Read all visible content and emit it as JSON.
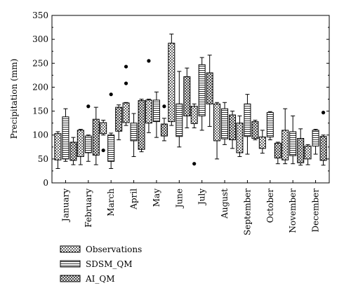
{
  "chart_data": {
    "type": "boxplot",
    "ylabel": "Precipitation (mm)",
    "ylim": [
      0,
      350
    ],
    "yticks": [
      0,
      50,
      100,
      150,
      200,
      250,
      300,
      350
    ],
    "categories": [
      "January",
      "February",
      "March",
      "April",
      "May",
      "June",
      "July",
      "August",
      "September",
      "October",
      "November",
      "December"
    ],
    "legend": {
      "placement": "bottom-left",
      "entries": [
        "Observations",
        "SDSM_QM",
        "AI_QM"
      ]
    },
    "series": [
      {
        "name": "Observations",
        "pattern": "dots",
        "boxes": [
          {
            "min": 30,
            "q1": 48,
            "q3": 103,
            "max": 107,
            "outliers": []
          },
          {
            "min": 38,
            "q1": 55,
            "q3": 110,
            "max": 112,
            "outliers": []
          },
          {
            "min": 100,
            "q1": 103,
            "q3": 126,
            "max": 131,
            "outliers": [
              68
            ]
          },
          {
            "min": 120,
            "q1": 126,
            "q3": 167,
            "max": 168,
            "outliers": [
              243,
              208
            ]
          },
          {
            "min": 105,
            "q1": 125,
            "q3": 173,
            "max": 175,
            "outliers": [
              255
            ]
          },
          {
            "min": 120,
            "q1": 128,
            "q3": 292,
            "max": 311,
            "outliers": []
          },
          {
            "min": 115,
            "q1": 124,
            "q3": 160,
            "max": 165,
            "outliers": [
              40
            ]
          },
          {
            "min": 50,
            "q1": 88,
            "q3": 165,
            "max": 168,
            "outliers": []
          },
          {
            "min": 55,
            "q1": 63,
            "q3": 125,
            "max": 140,
            "outliers": []
          },
          {
            "min": 62,
            "q1": 72,
            "q3": 96,
            "max": 110,
            "outliers": []
          },
          {
            "min": 40,
            "q1": 48,
            "q3": 110,
            "max": 155,
            "outliers": []
          },
          {
            "min": 38,
            "q1": 50,
            "q3": 77,
            "max": 80,
            "outliers": []
          }
        ]
      },
      {
        "name": "SDSM_QM",
        "pattern": "horizontal-lines",
        "boxes": [
          {
            "min": 45,
            "q1": 50,
            "q3": 138,
            "max": 155,
            "outliers": []
          },
          {
            "min": 45,
            "q1": 63,
            "q3": 98,
            "max": 100,
            "outliers": [
              160
            ]
          },
          {
            "min": 30,
            "q1": 45,
            "q3": 100,
            "max": 104,
            "outliers": [
              185
            ]
          },
          {
            "min": 55,
            "q1": 88,
            "q3": 125,
            "max": 145,
            "outliers": []
          },
          {
            "min": 95,
            "q1": 128,
            "q3": 173,
            "max": 190,
            "outliers": []
          },
          {
            "min": 75,
            "q1": 97,
            "q3": 165,
            "max": 233,
            "outliers": []
          },
          {
            "min": 110,
            "q1": 140,
            "q3": 247,
            "max": 262,
            "outliers": []
          },
          {
            "min": 80,
            "q1": 92,
            "q3": 155,
            "max": 168,
            "outliers": []
          },
          {
            "min": 60,
            "q1": 97,
            "q3": 165,
            "max": 185,
            "outliers": []
          },
          {
            "min": 90,
            "q1": 96,
            "q3": 147,
            "max": 149,
            "outliers": []
          },
          {
            "min": 40,
            "q1": 57,
            "q3": 107,
            "max": 140,
            "outliers": []
          },
          {
            "min": 60,
            "q1": 77,
            "q3": 110,
            "max": 112,
            "outliers": []
          }
        ]
      },
      {
        "name": "AI_QM",
        "pattern": "crosshatch",
        "boxes": [
          {
            "min": 38,
            "q1": 47,
            "q3": 85,
            "max": 95,
            "outliers": []
          },
          {
            "min": 38,
            "q1": 58,
            "q3": 133,
            "max": 158,
            "outliers": []
          },
          {
            "min": 90,
            "q1": 108,
            "q3": 158,
            "max": 163,
            "outliers": []
          },
          {
            "min": 65,
            "q1": 70,
            "q3": 172,
            "max": 175,
            "outliers": []
          },
          {
            "min": 88,
            "q1": 98,
            "q3": 123,
            "max": 135,
            "outliers": [
              160
            ]
          },
          {
            "min": 115,
            "q1": 140,
            "q3": 222,
            "max": 240,
            "outliers": []
          },
          {
            "min": 118,
            "q1": 165,
            "q3": 230,
            "max": 267,
            "outliers": []
          },
          {
            "min": 72,
            "q1": 90,
            "q3": 142,
            "max": 150,
            "outliers": []
          },
          {
            "min": 90,
            "q1": 93,
            "q3": 128,
            "max": 131,
            "outliers": []
          },
          {
            "min": 40,
            "q1": 52,
            "q3": 83,
            "max": 85,
            "outliers": []
          },
          {
            "min": 37,
            "q1": 42,
            "q3": 93,
            "max": 113,
            "outliers": []
          },
          {
            "min": 37,
            "q1": 47,
            "q3": 97,
            "max": 100,
            "outliers": [
              147
            ]
          }
        ]
      }
    ]
  }
}
